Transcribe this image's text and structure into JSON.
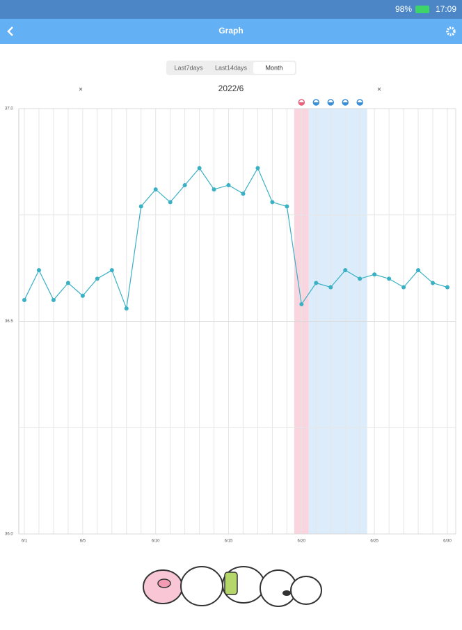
{
  "status_bar": {
    "battery": "98%",
    "time": "17:09"
  },
  "header": {
    "title": "Graph"
  },
  "tabs": [
    "Last7days",
    "Last14days",
    "Month"
  ],
  "month_label": "2022/6",
  "chart_data": {
    "type": "line",
    "categories": [
      "6/1",
      null,
      null,
      null,
      "6/5",
      null,
      null,
      null,
      null,
      "6/10",
      null,
      null,
      null,
      null,
      "6/15",
      null,
      null,
      null,
      null,
      "6/20",
      null,
      null,
      null,
      null,
      "6/25",
      null,
      null,
      null,
      null,
      "6/30"
    ],
    "series": [
      {
        "color": "#3ab0c4",
        "values": [
          36.55,
          36.62,
          36.55,
          36.59,
          36.56,
          36.6,
          36.62,
          36.53,
          36.77,
          36.81,
          36.78,
          36.82,
          36.86,
          36.81,
          36.82,
          36.8,
          36.86,
          36.78,
          36.77,
          36.54,
          36.59,
          36.58,
          36.62,
          36.6,
          36.61,
          36.6,
          36.58,
          36.62,
          36.59,
          36.58
        ]
      }
    ],
    "ylim": [
      36,
      37
    ],
    "yticks": [
      {
        "value": 36,
        "label": "36.0"
      },
      {
        "value": 36.5,
        "label": "36.5"
      },
      {
        "value": 37,
        "label": "37.0"
      }
    ],
    "grid": true,
    "bands": [
      {
        "start": 19,
        "end": 19,
        "color": "#f9d6df",
        "marker": "#e8607a"
      },
      {
        "start": 20,
        "end": 23,
        "color": "#dcecfa",
        "marker": "#3b8fd6"
      }
    ]
  }
}
